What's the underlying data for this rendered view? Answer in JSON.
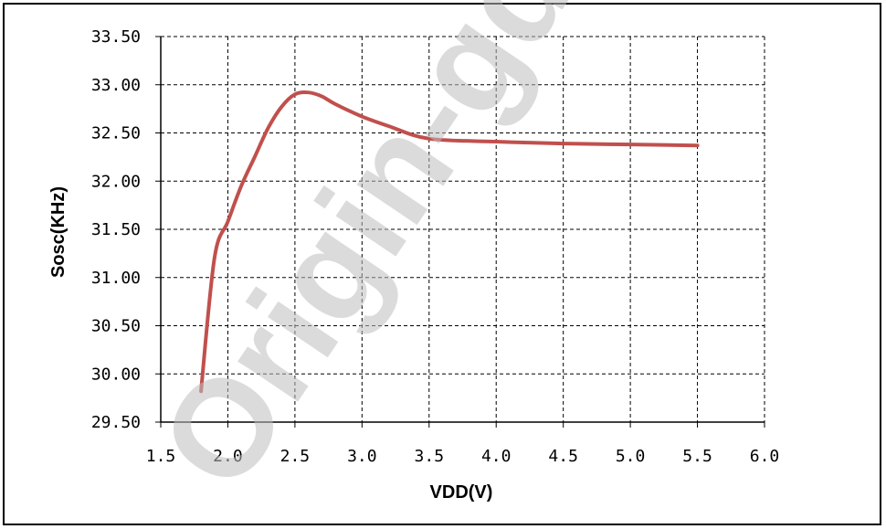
{
  "watermark": "Origin-gd Te",
  "colors": {
    "series": "#c0504d",
    "grid": "#000000",
    "frame": "#000000",
    "watermark": "#bdbdbd"
  },
  "chart_data": {
    "type": "line",
    "title": "",
    "xlabel": "VDD(V)",
    "ylabel": "Sosc(KHz)",
    "xlim": [
      1.5,
      6.0
    ],
    "ylim": [
      29.5,
      33.5
    ],
    "x_ticks": [
      "1.5",
      "2.0",
      "2.5",
      "3.0",
      "3.5",
      "4.0",
      "4.5",
      "5.0",
      "5.5",
      "6.0"
    ],
    "y_ticks": [
      "29.50",
      "30.00",
      "30.50",
      "31.00",
      "31.50",
      "32.00",
      "32.50",
      "33.00",
      "33.50"
    ],
    "grid": "dashed",
    "legend": "none",
    "series": [
      {
        "x": [
          1.8,
          1.9,
          2.0,
          2.1,
          2.2,
          2.3,
          2.4,
          2.5,
          2.6,
          2.7,
          2.8,
          3.0,
          3.2,
          3.5,
          4.0,
          4.5,
          5.0,
          5.5
        ],
        "y": [
          29.82,
          31.2,
          31.58,
          31.95,
          32.25,
          32.55,
          32.77,
          32.9,
          32.92,
          32.88,
          32.8,
          32.67,
          32.57,
          32.44,
          32.41,
          32.39,
          32.38,
          32.37
        ]
      }
    ]
  }
}
